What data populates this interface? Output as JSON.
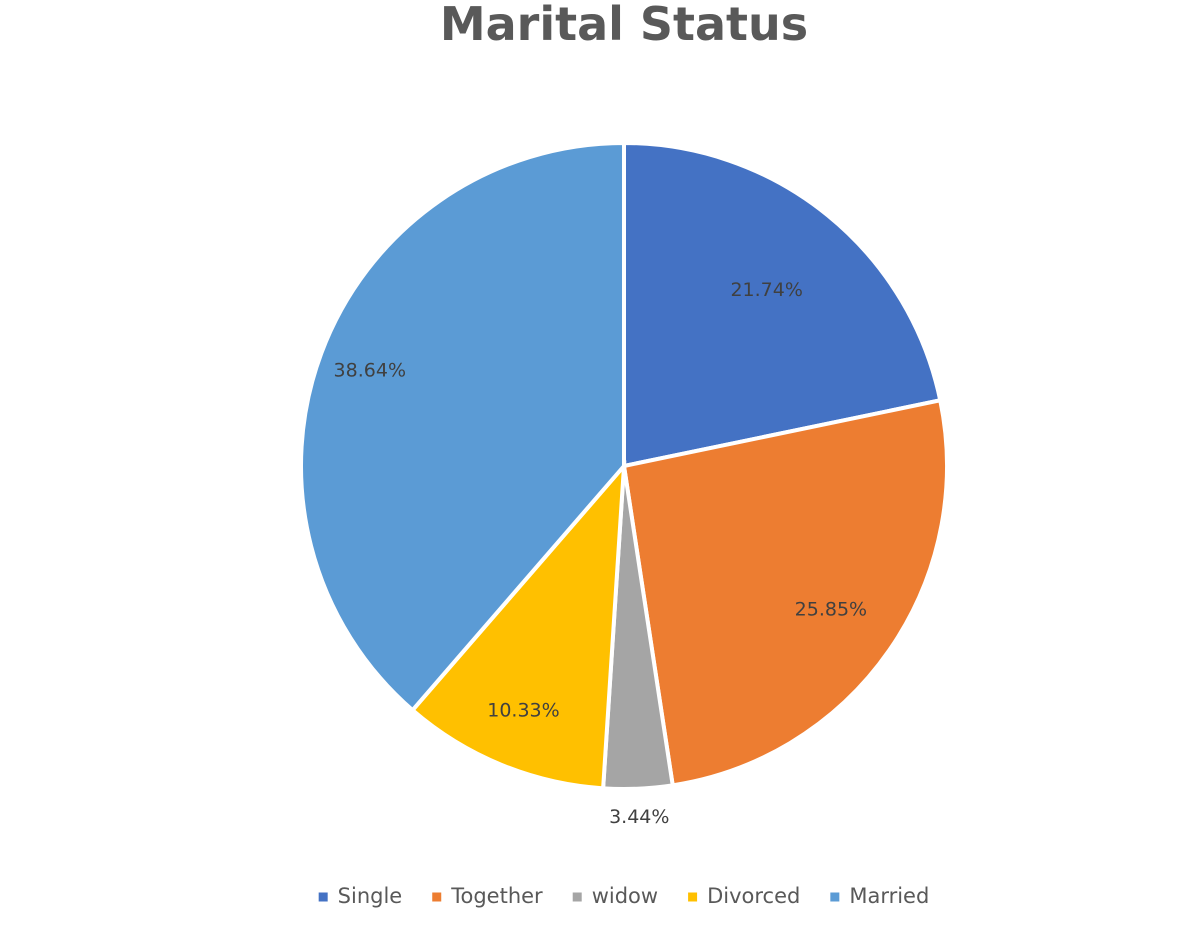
{
  "chart_data": {
    "type": "pie",
    "title": "Marital Status",
    "categories": [
      "Single",
      "Together",
      "widow",
      "Divorced",
      "Married"
    ],
    "values": [
      21.74,
      25.85,
      3.44,
      10.33,
      38.64
    ],
    "data_labels": [
      "21.74%",
      "25.85%",
      "3.44%",
      "10.33%",
      "38.64%"
    ],
    "colors": [
      "#4472C4",
      "#ED7D31",
      "#A5A5A5",
      "#FFC000",
      "#5B9BD5"
    ],
    "legend_position": "bottom",
    "start_angle": "12 o'clock",
    "direction": "clockwise"
  }
}
